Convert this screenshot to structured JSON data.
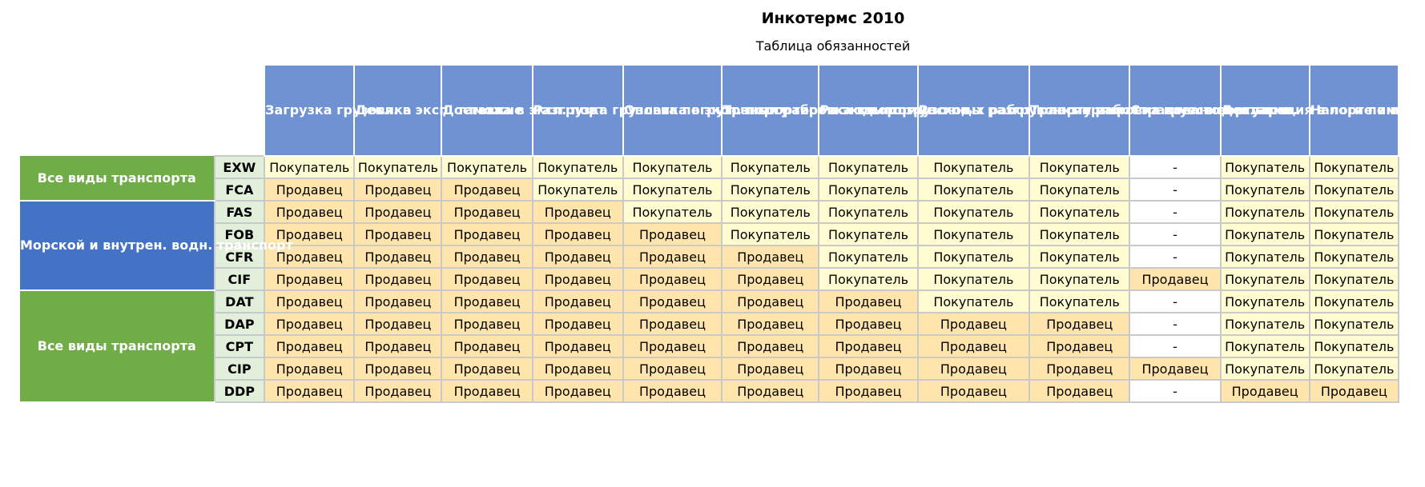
{
  "title": "Инкотермс 2010",
  "subtitle": "Таблица обязанностей",
  "headers": [
    "Загрузка грузовика",
    "Декл. в эксп. таможне",
    "Доставка в эксп. порт",
    "Разгрузка грузовика в эксп. порту",
    "Оплата погрузочных работ в эксп. порту",
    "Транспортировка в порт имп.",
    "Расходы погрузочных работ в порту имп.",
    "Расходы разгрузочных работ из груз. в порту имп.",
    "Транспортировка в место поставки",
    "Страхование",
    "Декларация в порте импорта",
    "Налоги по импорту"
  ],
  "groups": [
    {
      "label": "Все виды транспорта",
      "rows": [
        {
          "code": "EXW",
          "cells": [
            "Покупатель",
            "Покупатель",
            "Покупатель",
            "Покупатель",
            "Покупатель",
            "Покупатель",
            "Покупатель",
            "Покупатель",
            "Покупатель",
            "-",
            "Покупатель",
            "Покупатель"
          ]
        },
        {
          "code": "FCA",
          "cells": [
            "Продавец",
            "Продавец",
            "Продавец",
            "Покупатель",
            "Покупатель",
            "Покупатель",
            "Покупатель",
            "Покупатель",
            "Покупатель",
            "-",
            "Покупатель",
            "Покупатель"
          ]
        }
      ]
    },
    {
      "label": "Морской и внутрен. водн. транспорт",
      "rows": [
        {
          "code": "FAS",
          "cells": [
            "Продавец",
            "Продавец",
            "Продавец",
            "Продавец",
            "Покупатель",
            "Покупатель",
            "Покупатель",
            "Покупатель",
            "Покупатель",
            "-",
            "Покупатель",
            "Покупатель"
          ]
        },
        {
          "code": "FOB",
          "cells": [
            "Продавец",
            "Продавец",
            "Продавец",
            "Продавец",
            "Продавец",
            "Покупатель",
            "Покупатель",
            "Покупатель",
            "Покупатель",
            "-",
            "Покупатель",
            "Покупатель"
          ]
        },
        {
          "code": "CFR",
          "cells": [
            "Продавец",
            "Продавец",
            "Продавец",
            "Продавец",
            "Продавец",
            "Продавец",
            "Покупатель",
            "Покупатель",
            "Покупатель",
            "-",
            "Покупатель",
            "Покупатель"
          ]
        },
        {
          "code": "CIF",
          "cells": [
            "Продавец",
            "Продавец",
            "Продавец",
            "Продавец",
            "Продавец",
            "Продавец",
            "Покупатель",
            "Покупатель",
            "Покупатель",
            "Продавец",
            "Покупатель",
            "Покупатель"
          ]
        }
      ]
    },
    {
      "label": "Все виды транспорта",
      "rows": [
        {
          "code": "DAT",
          "cells": [
            "Продавец",
            "Продавец",
            "Продавец",
            "Продавец",
            "Продавец",
            "Продавец",
            "Продавец",
            "Покупатель",
            "Покупатель",
            "-",
            "Покупатель",
            "Покупатель"
          ]
        },
        {
          "code": "DAP",
          "cells": [
            "Продавец",
            "Продавец",
            "Продавец",
            "Продавец",
            "Продавец",
            "Продавец",
            "Продавец",
            "Продавец",
            "Продавец",
            "-",
            "Покупатель",
            "Покупатель"
          ]
        },
        {
          "code": "CPT",
          "cells": [
            "Продавец",
            "Продавец",
            "Продавец",
            "Продавец",
            "Продавец",
            "Продавец",
            "Продавец",
            "Продавец",
            "Продавец",
            "-",
            "Покупатель",
            "Покупатель"
          ]
        },
        {
          "code": "CIP",
          "cells": [
            "Продавец",
            "Продавец",
            "Продавец",
            "Продавец",
            "Продавец",
            "Продавец",
            "Продавец",
            "Продавец",
            "Продавец",
            "Продавец",
            "Покупатель",
            "Покупатель"
          ]
        },
        {
          "code": "DDP",
          "cells": [
            "Продавец",
            "Продавец",
            "Продавец",
            "Продавец",
            "Продавец",
            "Продавец",
            "Продавец",
            "Продавец",
            "Продавец",
            "-",
            "Продавец",
            "Продавец"
          ]
        }
      ]
    }
  ],
  "colors": {
    "header": "#6f93d2",
    "group_all_transport": "#70ad47",
    "group_sea": "#4472c4",
    "buyer_cell": "#fefcd0",
    "seller_cell": "#ffe5ac",
    "code_cell": "#e2efda"
  }
}
